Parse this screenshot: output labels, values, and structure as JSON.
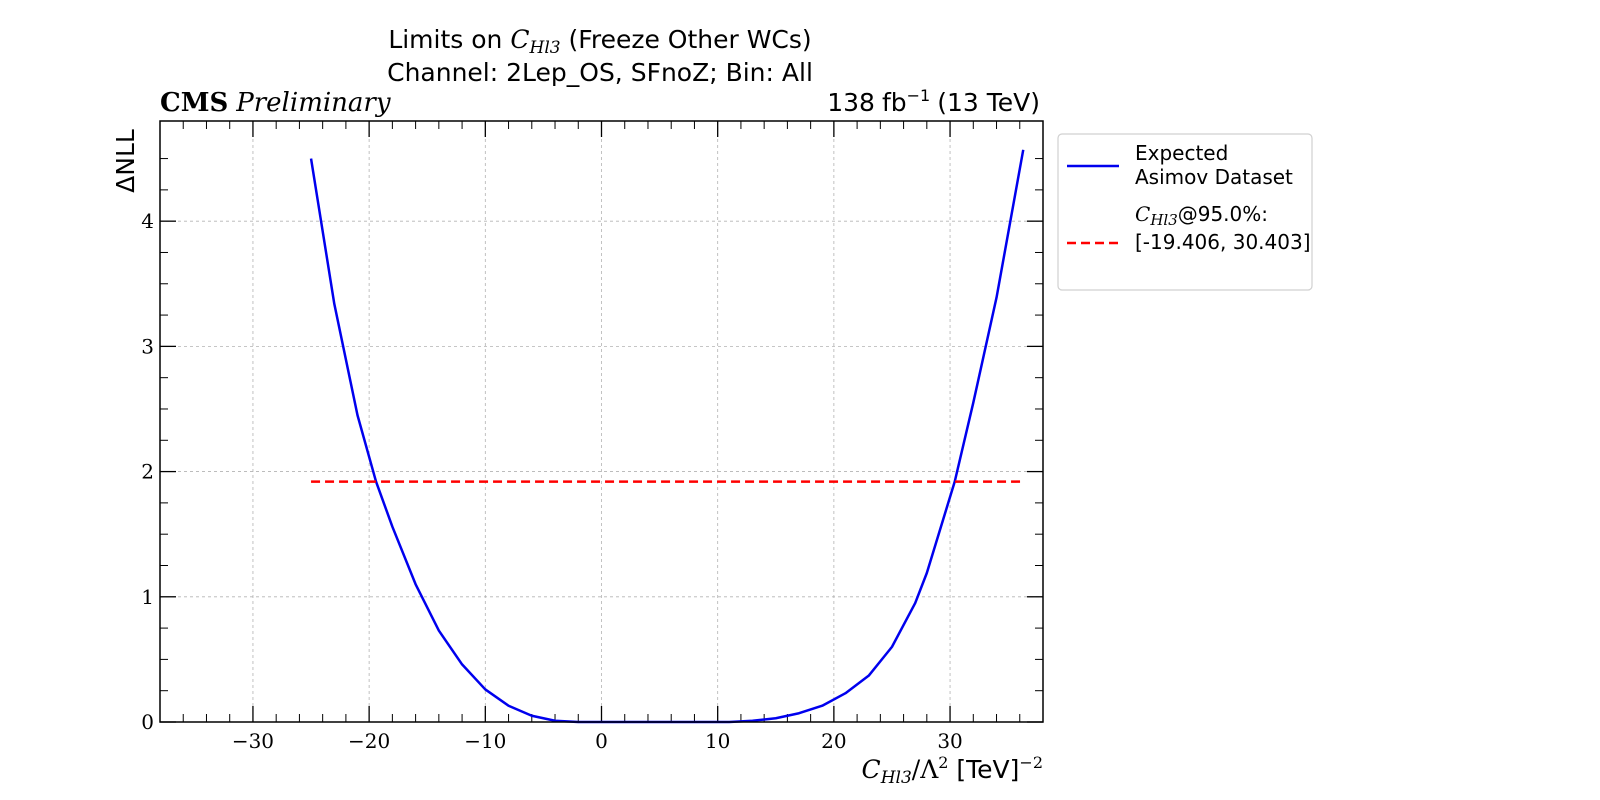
{
  "chart_data": {
    "type": "line",
    "title": "Limits on C_Hl3 (Freeze Other WCs)",
    "title_parts": {
      "prefix": "Limits on ",
      "wc_letter": "C",
      "wc_sub": "Hl3",
      "suffix": " (Freeze Other WCs)"
    },
    "subtitle": "Channel: 2Lep_OS, SFnoZ; Bin: All",
    "experiment": "CMS",
    "status": "Preliminary",
    "luminosity": {
      "value": "138",
      "unit": "fb",
      "unit_exp": "−1",
      "energy": "(13 TeV)"
    },
    "xlabel": "C_Hl3/Λ^2 [TeV]^-2",
    "xlabel_parts": {
      "wc_letter": "C",
      "wc_sub": "Hl3",
      "mid": "/Λ",
      "mid_sup": "2",
      "unit": " [TeV]",
      "unit_sup": "−2"
    },
    "ylabel": "ΔNLL",
    "xlim": [
      -38,
      38
    ],
    "ylim": [
      0,
      4.8
    ],
    "xticks": [
      -30,
      -20,
      -10,
      0,
      10,
      20,
      30
    ],
    "xtick_labels": [
      "−30",
      "−20",
      "−10",
      "0",
      "10",
      "20",
      "30"
    ],
    "yticks": [
      0,
      1,
      2,
      3,
      4
    ],
    "ytick_labels": [
      "0",
      "1",
      "2",
      "3",
      "4"
    ],
    "grid": true,
    "legend_position": "outside-right",
    "series": [
      {
        "name": "Expected Asimov Dataset",
        "legend_lines": [
          "Expected",
          "Asimov Dataset"
        ],
        "style": "solid",
        "color": "#0000ee",
        "x": [
          -25,
          -23,
          -21,
          -19.406,
          -18,
          -16,
          -14,
          -12,
          -10,
          -8,
          -6,
          -4,
          -2,
          0,
          2,
          5,
          8,
          11,
          13,
          15,
          17,
          19,
          21,
          23,
          25,
          27,
          28,
          30.403,
          32,
          34,
          36.3
        ],
        "y": [
          4.5,
          3.34,
          2.45,
          1.92,
          1.56,
          1.1,
          0.73,
          0.46,
          0.26,
          0.13,
          0.05,
          0.01,
          0.0,
          0.0,
          0.0,
          0.0,
          0.0,
          0.0,
          0.01,
          0.03,
          0.07,
          0.13,
          0.23,
          0.37,
          0.6,
          0.95,
          1.19,
          1.92,
          2.55,
          3.39,
          4.57
        ]
      },
      {
        "name": "C_Hl3@95.0%: [-19.406, 30.403]",
        "legend_line1": {
          "wc_letter": "C",
          "wc_sub": "Hl3",
          "suffix": "@95.0%:"
        },
        "legend_line2": "[-19.406, 30.403]",
        "style": "dashed",
        "color": "#ff0000",
        "x": [
          -25,
          36.3
        ],
        "y": [
          1.92,
          1.92
        ]
      }
    ]
  }
}
